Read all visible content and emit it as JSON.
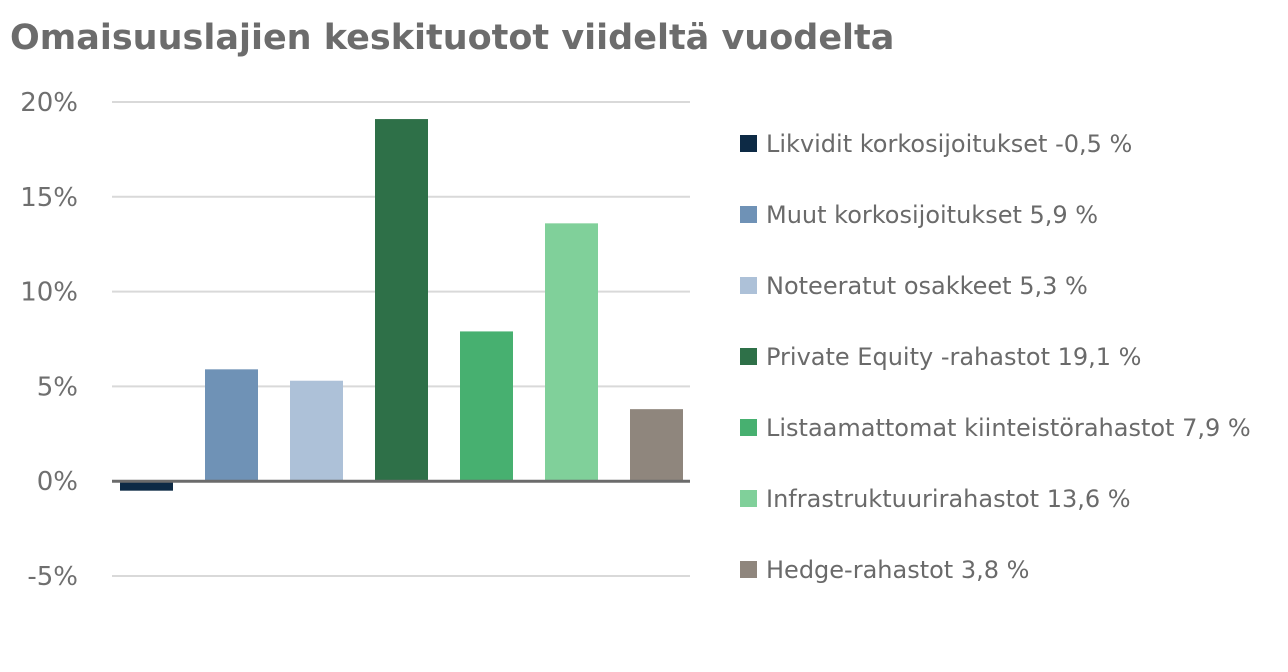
{
  "chart_data": {
    "type": "bar",
    "title": "Omaisuuslajien keskituotot viideltä vuodelta",
    "xlabel": "",
    "ylabel": "",
    "ylim": [
      -5,
      20
    ],
    "yticks": [
      20,
      15,
      10,
      5,
      0,
      -5
    ],
    "ytick_labels": [
      "20%",
      "15%",
      "10%",
      "5%",
      "0%",
      "-5%"
    ],
    "grid": true,
    "legend_position": "right",
    "categories": [
      "Likvidit korkosijoitukset -0,5 %",
      "Muut korkosijoitukset 5,9 %",
      "Noteeratut osakkeet 5,3 %",
      "Private Equity -rahastot 19,1 %",
      "Listaamattomat kiinteistörahastot 7,9 %",
      "Infrastruktuurirahastot 13,6 %",
      "Hedge-rahastot 3,8 %"
    ],
    "values": [
      -0.5,
      5.9,
      5.3,
      19.1,
      7.9,
      13.6,
      3.8
    ],
    "colors": [
      "#0d2a45",
      "#6f92b6",
      "#adc1d8",
      "#2e7048",
      "#47b070",
      "#80d09a",
      "#8f867d"
    ]
  }
}
